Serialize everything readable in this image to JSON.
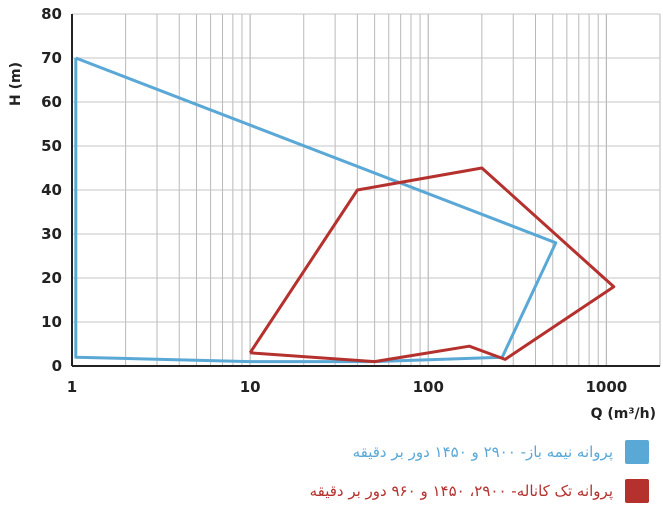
{
  "chart_data": {
    "type": "line",
    "xscale": "log",
    "xlim": [
      1,
      2000
    ],
    "ylim": [
      0,
      80
    ],
    "grid": true,
    "xlabel": "Q (m³/h)",
    "ylabel": "H (m)",
    "xticks": [
      {
        "value": 1,
        "label": "1"
      },
      {
        "value": 10,
        "label": "10"
      },
      {
        "value": 100,
        "label": "100"
      },
      {
        "value": 1000,
        "label": "1000"
      }
    ],
    "yticks": [
      0,
      10,
      20,
      30,
      40,
      50,
      60,
      70,
      80
    ],
    "legend_position": "bottom",
    "series": [
      {
        "name": "پروانه نیمه باز- ۲۹۰۰ و ۱۴۵۰ دور بر دقیقه",
        "color": "#5aa8d6",
        "x": [
          1.05,
          1.05,
          10,
          50,
          260,
          520,
          1.05
        ],
        "y": [
          70,
          2,
          1,
          1,
          2,
          28,
          70
        ]
      },
      {
        "name": "پروانه تک کاناله- ۲۹۰۰، ۱۴۵۰ و ۹۶۰ دور بر دقیقه",
        "color": "#b5312e",
        "x": [
          10,
          40,
          200,
          1100,
          270,
          170,
          50,
          10
        ],
        "y": [
          3,
          40,
          45,
          18,
          1.5,
          4.5,
          1,
          3
        ]
      }
    ]
  }
}
